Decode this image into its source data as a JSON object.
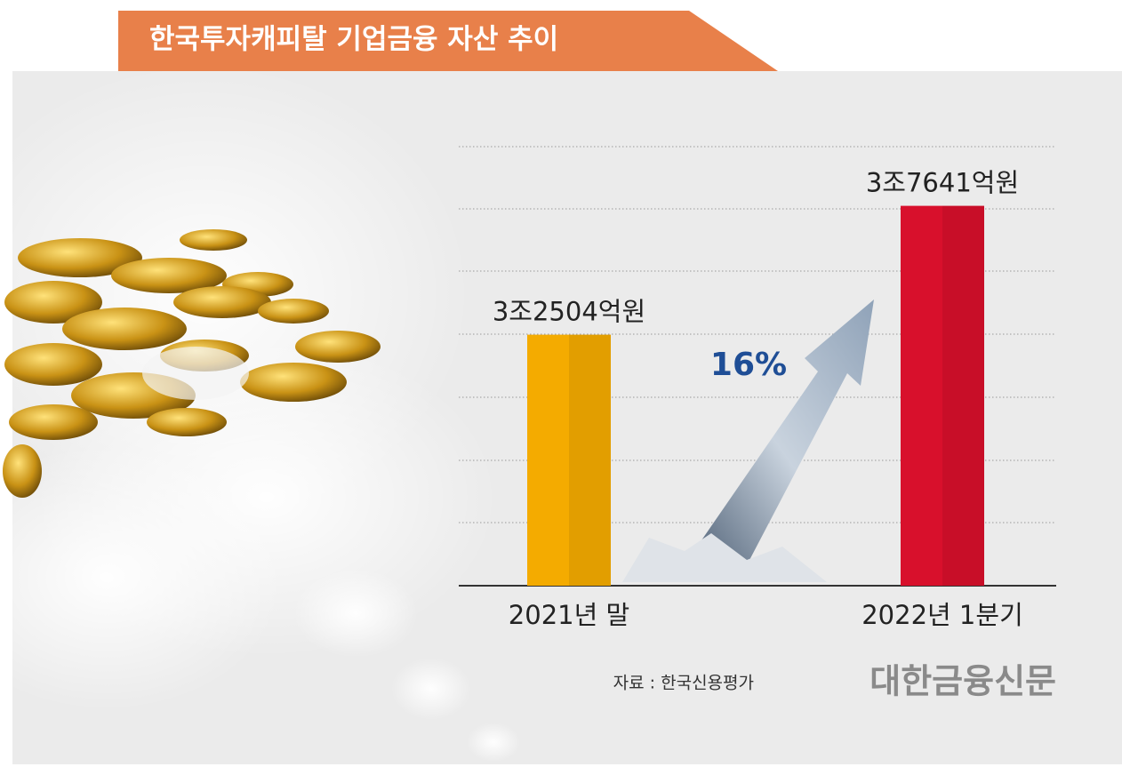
{
  "chart_data": {
    "type": "bar",
    "title": "한국투자캐피탈 기업금융 자산 추이",
    "categories": [
      "2021년 말",
      "2022년 1분기"
    ],
    "values": [
      32504,
      37641
    ],
    "value_labels": [
      "3조2504억원",
      "3조7641억원"
    ],
    "colors": [
      "#f4ab00",
      "#d8102c"
    ],
    "ylim": [
      22500,
      40000
    ],
    "annotation": "16%",
    "source": "자료 : 한국신용평가",
    "brand": "대한금융신문"
  }
}
